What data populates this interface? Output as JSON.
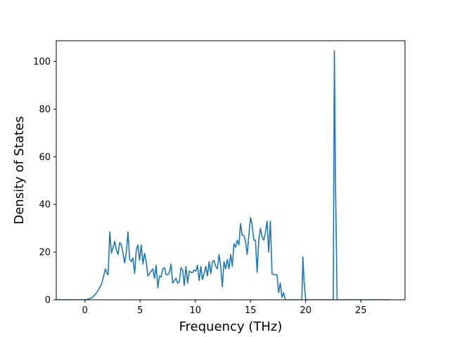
{
  "chart_data": {
    "type": "line",
    "title": "",
    "xlabel": "Frequency (THz)",
    "ylabel": "Density of States",
    "xlim": [
      -2.6,
      29.0
    ],
    "ylim": [
      0,
      108.7
    ],
    "xticks": [
      0,
      5,
      10,
      15,
      20,
      25
    ],
    "yticks": [
      0,
      20,
      40,
      60,
      80,
      100
    ],
    "grid": false,
    "legend": "none",
    "series": [
      {
        "color": "#1f77b4",
        "x": [
          -2.6,
          -2.0,
          -1.5,
          -1.0,
          -0.5,
          0.0,
          0.3,
          0.6,
          0.9,
          1.2,
          1.5,
          1.7,
          1.85,
          2.0,
          2.1,
          2.25,
          2.4,
          2.55,
          2.7,
          2.85,
          3.0,
          3.15,
          3.3,
          3.45,
          3.6,
          3.75,
          3.9,
          4.05,
          4.2,
          4.35,
          4.5,
          4.65,
          4.8,
          4.95,
          5.1,
          5.25,
          5.4,
          5.55,
          5.7,
          5.85,
          6.0,
          6.15,
          6.3,
          6.45,
          6.6,
          6.75,
          6.9,
          7.05,
          7.2,
          7.35,
          7.5,
          7.65,
          7.8,
          7.95,
          8.1,
          8.25,
          8.4,
          8.55,
          8.7,
          8.85,
          9.0,
          9.15,
          9.3,
          9.45,
          9.6,
          9.75,
          9.9,
          10.05,
          10.2,
          10.35,
          10.5,
          10.65,
          10.8,
          10.95,
          11.1,
          11.25,
          11.4,
          11.55,
          11.7,
          11.85,
          12.0,
          12.15,
          12.3,
          12.45,
          12.6,
          12.75,
          12.9,
          13.05,
          13.2,
          13.35,
          13.5,
          13.65,
          13.8,
          13.95,
          14.1,
          14.25,
          14.4,
          14.55,
          14.7,
          14.85,
          15.0,
          15.15,
          15.3,
          15.45,
          15.6,
          15.75,
          15.9,
          16.05,
          16.2,
          16.35,
          16.5,
          16.65,
          16.8,
          16.95,
          17.1,
          17.25,
          17.4,
          17.55,
          17.7,
          17.85,
          18.0,
          18.15,
          18.3,
          18.5,
          19.0,
          19.5,
          19.65,
          19.75,
          19.85,
          20.0,
          21.0,
          22.0,
          22.35,
          22.5,
          22.6,
          22.7,
          22.85,
          23.0,
          24.0,
          25.0,
          26.0,
          27.0,
          27.6
        ],
        "y": [
          0,
          0,
          0,
          0,
          0,
          0,
          0.3,
          0.8,
          2,
          4,
          6.5,
          10,
          13,
          11,
          10.5,
          28.5,
          19.5,
          22,
          24.5,
          21,
          19,
          24,
          23,
          19.5,
          15.5,
          20,
          28.5,
          17,
          16,
          17.5,
          11,
          21,
          23,
          16.5,
          23,
          15,
          19.5,
          16,
          10,
          11,
          12,
          13,
          9,
          14.5,
          5,
          10,
          9.5,
          13,
          13.5,
          10.5,
          10.5,
          11.5,
          15,
          7,
          8,
          9,
          7,
          7.5,
          13.5,
          12.5,
          6,
          14,
          7,
          12,
          11.5,
          11.5,
          12.5,
          12,
          14.5,
          8,
          14,
          8.5,
          11,
          14,
          10,
          16,
          11,
          16,
          16.5,
          14,
          13,
          19,
          14,
          5.5,
          16,
          13,
          17,
          13,
          19,
          14,
          23.5,
          22,
          25,
          23,
          32,
          27,
          27,
          24.5,
          19,
          27,
          34.5,
          31.5,
          25,
          25,
          11.5,
          25,
          30,
          26.5,
          25,
          28,
          33,
          20,
          33,
          11,
          10.5,
          10.5,
          10.5,
          3,
          7,
          1,
          3,
          0,
          0,
          0,
          0,
          0,
          0,
          18,
          8,
          0,
          0,
          0,
          0,
          0,
          104.5,
          50,
          0,
          0,
          0,
          0,
          0,
          0,
          0
        ]
      }
    ]
  }
}
